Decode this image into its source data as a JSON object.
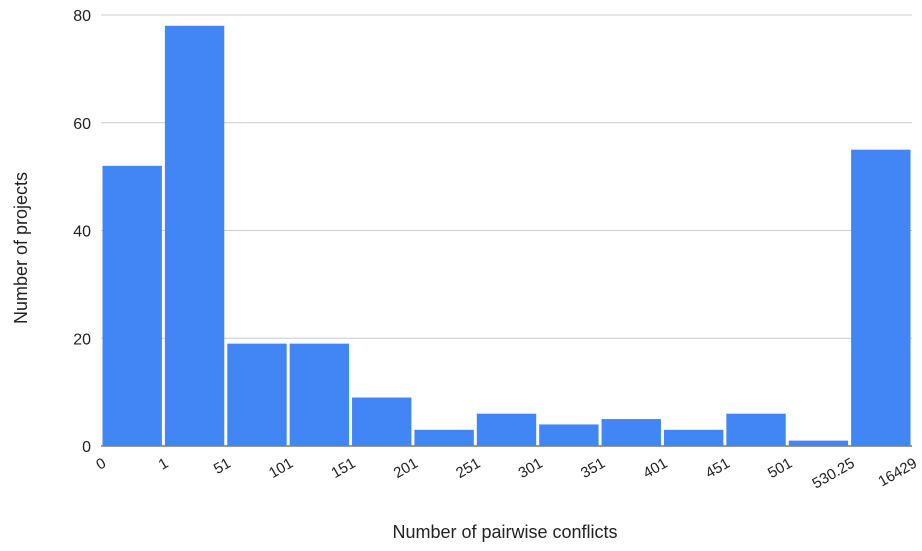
{
  "chart_data": {
    "type": "bar",
    "xlabel": "Number of pairwise conflicts",
    "ylabel": "Number of projects",
    "bin_edges": [
      "0",
      "1",
      "51",
      "101",
      "151",
      "201",
      "251",
      "301",
      "351",
      "401",
      "451",
      "501",
      "530.25",
      "16429"
    ],
    "values": [
      52,
      78,
      19,
      19,
      9,
      3,
      6,
      4,
      5,
      3,
      6,
      1,
      55
    ],
    "ylim": [
      0,
      80
    ],
    "yticks": [
      0,
      20,
      40,
      60,
      80
    ],
    "grid": true,
    "legend": "none",
    "bar_color": "#4285f4",
    "grid_color": "#cccccc",
    "baseline_color": "#333333",
    "text_color": "#222222"
  }
}
